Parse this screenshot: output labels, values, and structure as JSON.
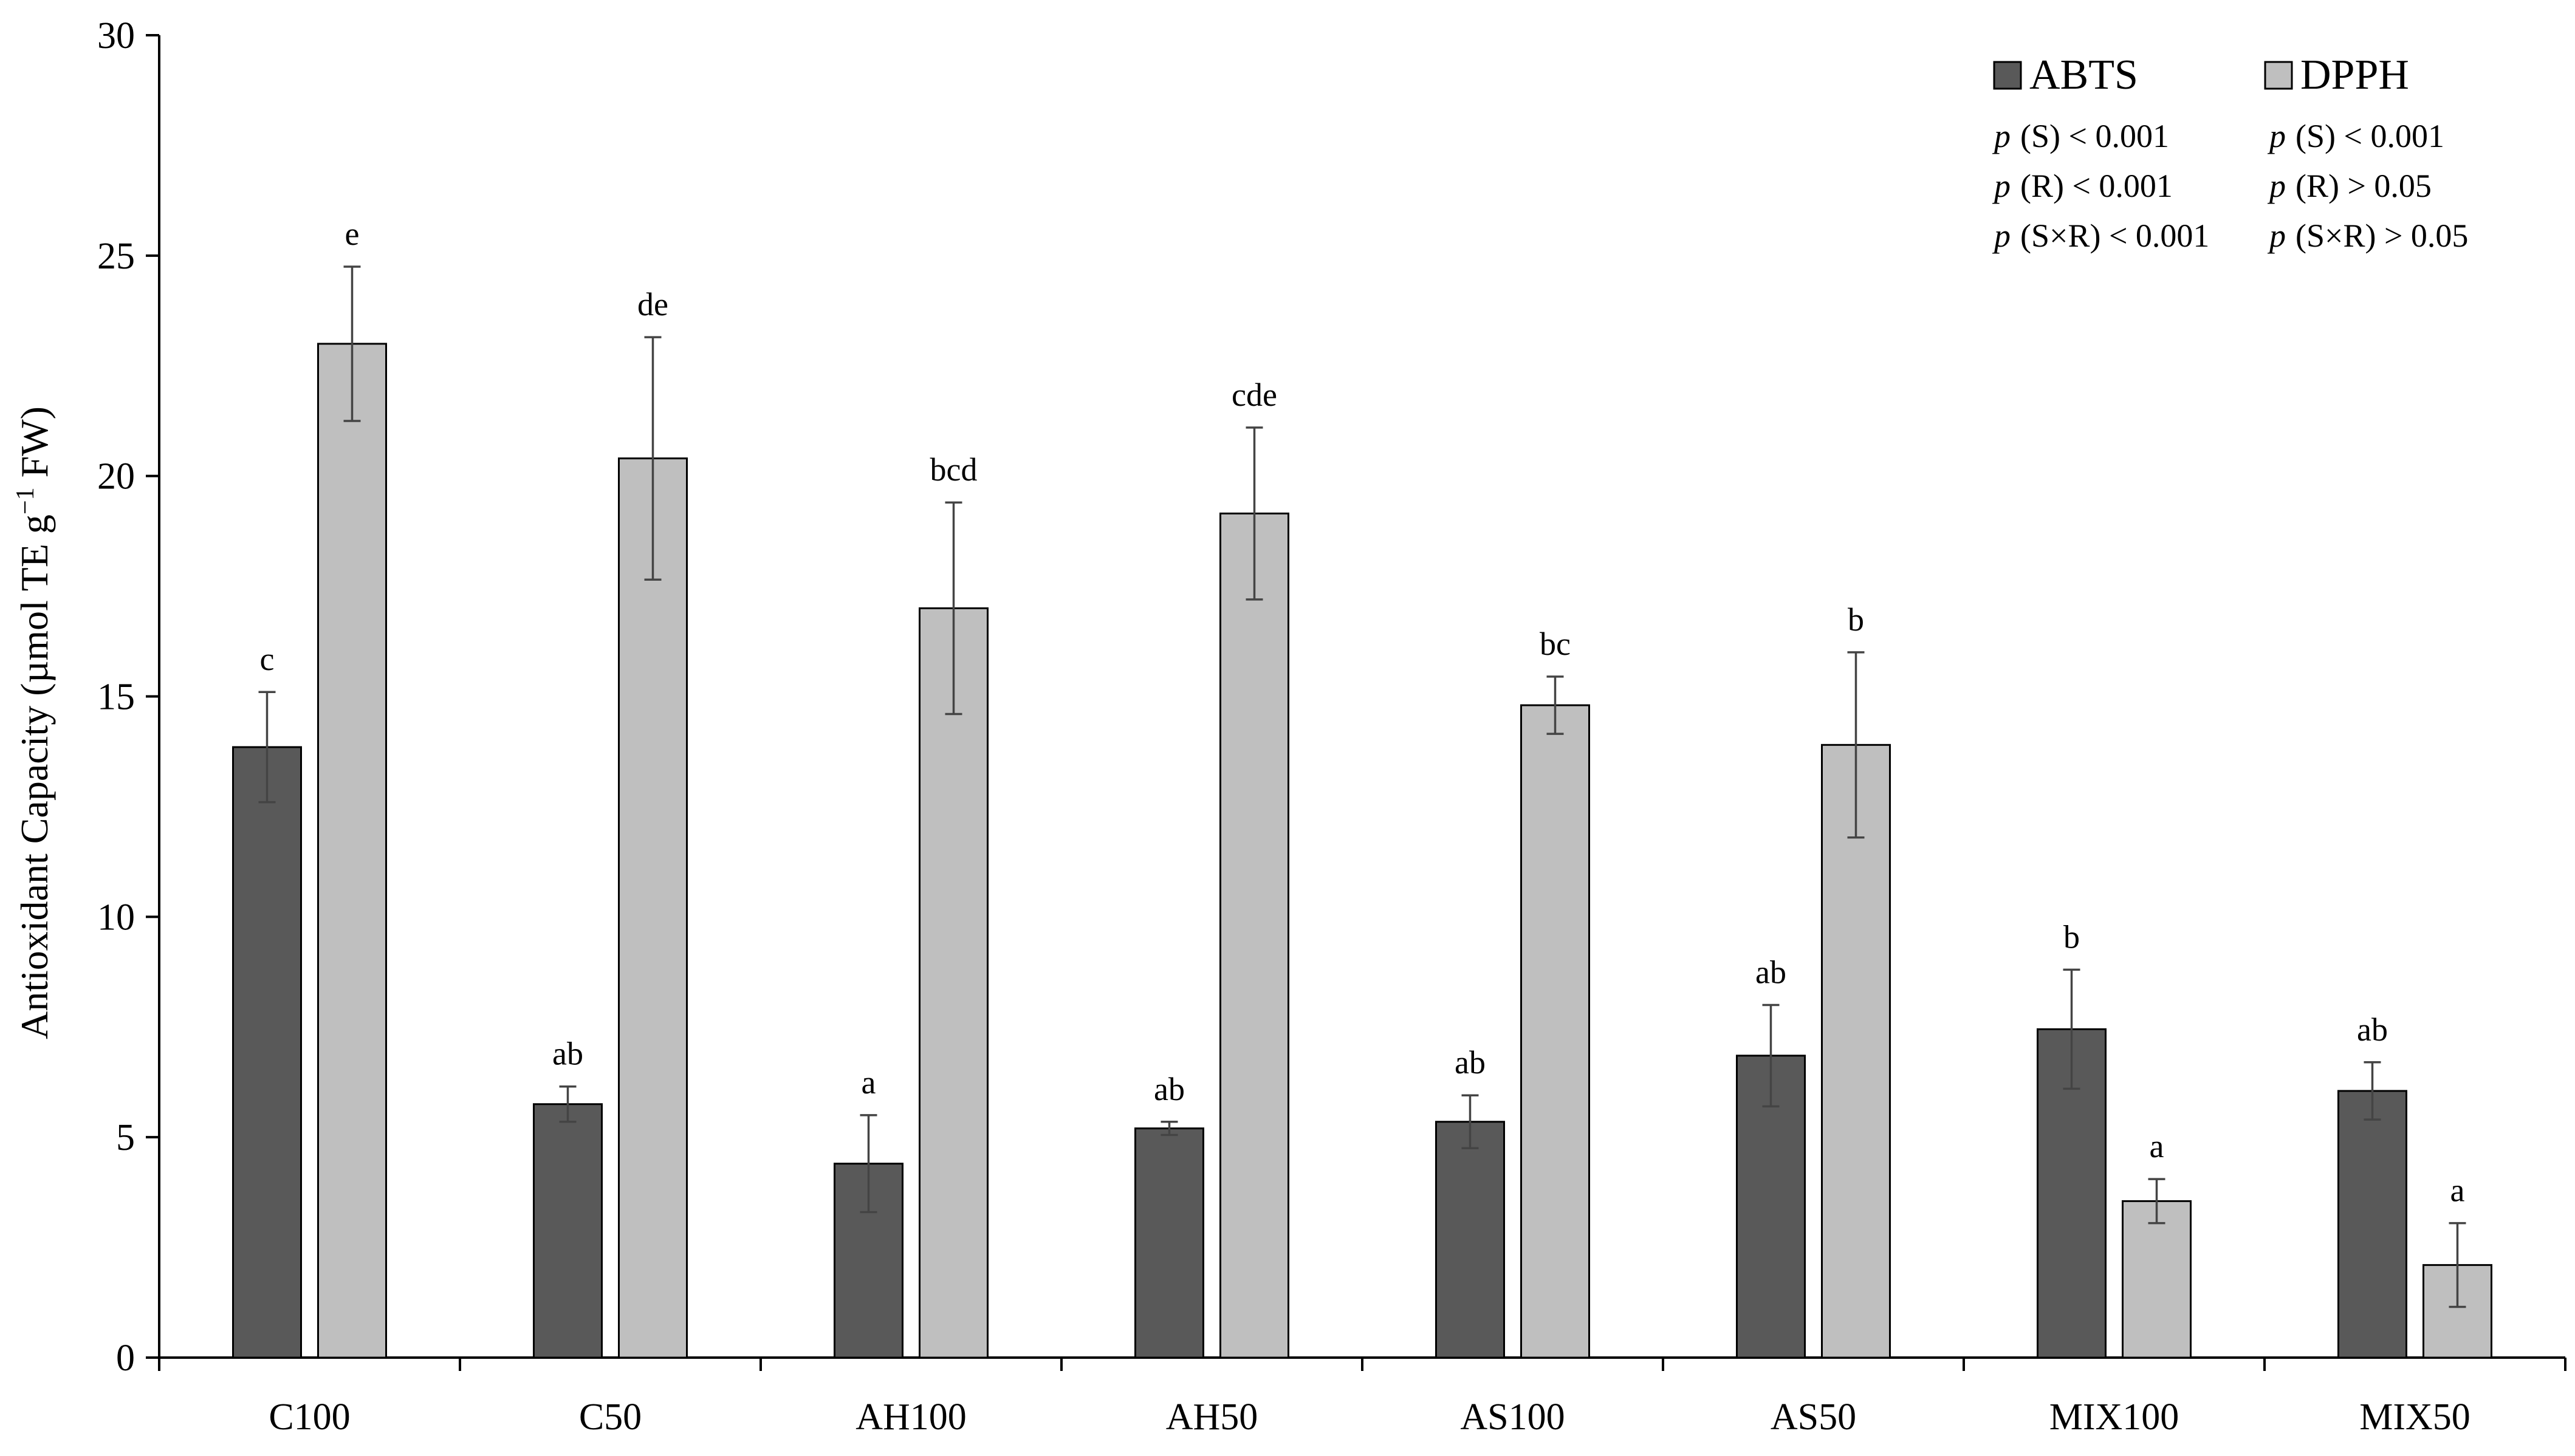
{
  "chart_data": {
    "type": "bar",
    "ylabel": "Antioxidant Capacity (µmol TE g",
    "ylabel_sup": "−1",
    "ylabel_tail": " FW)",
    "ylim": [
      0,
      30
    ],
    "yticks": [
      "0",
      "5",
      "10",
      "15",
      "20",
      "25",
      "30"
    ],
    "categories": [
      "C100",
      "C50",
      "AH100",
      "AH50",
      "AS100",
      "AS50",
      "MIX100",
      "MIX50"
    ],
    "series": [
      {
        "name": "ABTS",
        "color": "#595959",
        "values": [
          13.85,
          5.75,
          4.4,
          5.2,
          5.35,
          6.85,
          7.45,
          6.05
        ],
        "errors": [
          1.25,
          0.4,
          1.1,
          0.15,
          0.6,
          1.15,
          1.35,
          0.65
        ],
        "labels": [
          "c",
          "ab",
          "a",
          "ab",
          "ab",
          "ab",
          "b",
          "ab"
        ]
      },
      {
        "name": "DPPH",
        "color": "#bfbfbf",
        "values": [
          23.0,
          20.4,
          17.0,
          19.15,
          14.8,
          13.9,
          3.55,
          2.1
        ],
        "errors": [
          1.75,
          2.75,
          2.4,
          1.95,
          0.65,
          2.1,
          0.5,
          0.95
        ],
        "labels": [
          "e",
          "de",
          "bcd",
          "cde",
          "bc",
          "b",
          "a",
          "a"
        ]
      }
    ],
    "legend_position": "top-right",
    "stats": {
      "ABTS": [
        "(S) < 0.001",
        "(R) < 0.001",
        "(S×R) < 0.001"
      ],
      "DPPH": [
        "(S) < 0.001",
        "(R)  > 0.05",
        "(S×R) > 0.05"
      ],
      "p_symbol": "p"
    },
    "grid": false
  }
}
